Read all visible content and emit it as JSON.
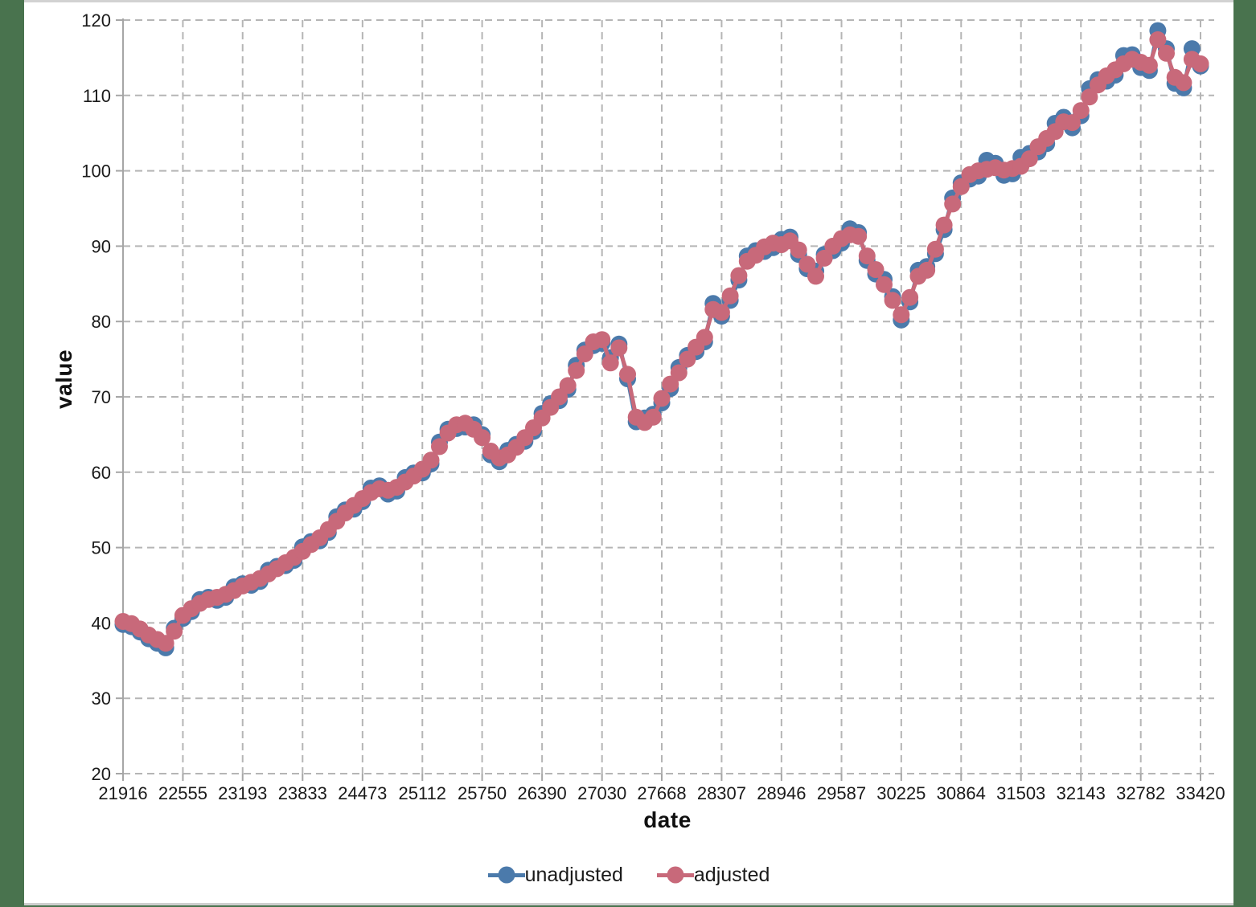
{
  "colors": {
    "page_background": "#49734E",
    "panel_background": "#FFFFFF",
    "gridline": "#B5B5B5",
    "axis_line": "#A6A6A6",
    "tick_text": "#1A1A1A",
    "unadjusted": "#4B7AAB",
    "adjusted": "#C8697A"
  },
  "chart_data": {
    "type": "line",
    "title": "",
    "xlabel": "date",
    "ylabel": "value",
    "grid": true,
    "legend_position": "bottom",
    "xlim": [
      21916,
      33420
    ],
    "ylim": [
      20,
      120
    ],
    "y_ticks": [
      20,
      30,
      40,
      50,
      60,
      70,
      80,
      90,
      100,
      110,
      120
    ],
    "x_ticks": [
      21916,
      22555,
      23193,
      23833,
      24473,
      25112,
      25750,
      26390,
      27030,
      27668,
      28307,
      28946,
      29587,
      30225,
      30864,
      31503,
      32143,
      32782,
      33420
    ],
    "x_tick_labels": [
      "21916",
      "22555",
      "23193",
      "23833",
      "24473",
      "25112",
      "25750",
      "26390",
      "27030",
      "27668",
      "28307",
      "28946",
      "29587",
      "30225",
      "30864",
      "31503",
      "32143",
      "32782",
      "33420"
    ],
    "x": [
      21916,
      22007,
      22098,
      22190,
      22282,
      22372,
      22463,
      22555,
      22647,
      22737,
      22828,
      22920,
      23012,
      23102,
      23193,
      23285,
      23377,
      23468,
      23559,
      23651,
      23743,
      23833,
      23924,
      24016,
      24108,
      24198,
      24289,
      24381,
      24473,
      24563,
      24654,
      24746,
      24838,
      24929,
      25020,
      25112,
      25204,
      25294,
      25385,
      25477,
      25569,
      25659,
      25750,
      25842,
      25934,
      26024,
      26115,
      26207,
      26299,
      26390,
      26481,
      26573,
      26665,
      26755,
      26846,
      26938,
      27030,
      27120,
      27211,
      27303,
      27395,
      27485,
      27576,
      27668,
      27760,
      27851,
      27942,
      28034,
      28126,
      28216,
      28307,
      28399,
      28491,
      28581,
      28672,
      28764,
      28856,
      28946,
      29037,
      29129,
      29221,
      29312,
      29403,
      29495,
      29587,
      29677,
      29768,
      29860,
      29952,
      30042,
      30133,
      30225,
      30317,
      30407,
      30498,
      30590,
      30682,
      30773,
      30864,
      30956,
      31048,
      31138,
      31229,
      31321,
      31413,
      31503,
      31594,
      31686,
      31778,
      31868,
      31959,
      32051,
      32143,
      32234,
      32325,
      32417,
      32509,
      32599,
      32690,
      32782,
      32874,
      32964,
      33055,
      33147,
      33239,
      33329,
      33420
    ],
    "series": [
      {
        "name": "unadjusted",
        "color": "#4B7AAB",
        "values": [
          39.8,
          39.5,
          38.8,
          37.9,
          37.3,
          36.7,
          39.3,
          40.6,
          41.5,
          43.1,
          43.4,
          43.0,
          43.4,
          44.8,
          45.2,
          45.0,
          45.5,
          47.0,
          47.5,
          47.6,
          48.3,
          50.1,
          50.8,
          50.9,
          52.0,
          54.1,
          55.0,
          55.1,
          56.1,
          57.9,
          58.2,
          57.1,
          57.5,
          59.3,
          59.9,
          59.9,
          61.1,
          64.0,
          65.7,
          65.8,
          66.0,
          66.3,
          65.0,
          62.3,
          61.4,
          62.9,
          63.7,
          64.1,
          65.4,
          67.8,
          69.1,
          69.5,
          71.0,
          74.2,
          76.2,
          76.8,
          77.1,
          75.2,
          77.0,
          72.4,
          66.7,
          67.2,
          67.7,
          69.2,
          71.1,
          73.9,
          75.5,
          76.0,
          77.3,
          82.4,
          80.7,
          82.8,
          85.5,
          88.7,
          89.4,
          89.3,
          89.8,
          90.9,
          91.2,
          88.9,
          87.0,
          86.7,
          88.9,
          89.4,
          90.4,
          92.3,
          91.8,
          88.1,
          86.3,
          85.6,
          83.3,
          80.2,
          82.6,
          86.8,
          87.3,
          89.0,
          92.2,
          96.4,
          98.4,
          98.9,
          99.3,
          101.4,
          101.0,
          99.4,
          99.6,
          101.8,
          102.3,
          102.5,
          103.6,
          106.3,
          107.1,
          105.7,
          107.3,
          110.9,
          112.1,
          111.9,
          112.7,
          115.3,
          115.4,
          113.7,
          113.3,
          118.6,
          116.2,
          111.6,
          111.0,
          116.2,
          113.9
        ]
      },
      {
        "name": "adjusted",
        "color": "#C8697A",
        "values": [
          40.2,
          39.9,
          39.2,
          38.4,
          37.8,
          37.3,
          38.9,
          41.0,
          41.9,
          42.6,
          43.1,
          43.4,
          43.8,
          44.3,
          44.9,
          45.4,
          45.9,
          46.5,
          47.2,
          48.0,
          48.7,
          49.5,
          50.4,
          51.3,
          52.4,
          53.5,
          54.6,
          55.6,
          56.5,
          57.3,
          57.8,
          57.6,
          58.0,
          58.7,
          59.5,
          60.4,
          61.6,
          63.4,
          65.2,
          66.3,
          66.5,
          65.7,
          64.6,
          62.8,
          61.9,
          62.3,
          63.3,
          64.6,
          65.9,
          67.2,
          68.6,
          70.0,
          71.5,
          73.5,
          75.7,
          77.3,
          77.6,
          74.5,
          76.5,
          73.0,
          67.3,
          66.6,
          67.3,
          69.8,
          71.7,
          73.2,
          75.0,
          76.6,
          77.9,
          81.6,
          81.2,
          83.4,
          86.1,
          88.0,
          88.8,
          89.9,
          90.4,
          90.2,
          90.7,
          89.5,
          87.6,
          86.0,
          88.4,
          90.0,
          91.0,
          91.5,
          91.3,
          88.7,
          86.9,
          84.9,
          82.8,
          80.9,
          83.2,
          86.0,
          86.8,
          89.6,
          92.8,
          95.6,
          97.9,
          99.5,
          100.0,
          100.2,
          100.4,
          100.1,
          100.3,
          100.6,
          101.6,
          103.2,
          104.3,
          105.2,
          106.5,
          106.4,
          108.0,
          109.8,
          111.4,
          112.6,
          113.4,
          114.2,
          114.8,
          114.4,
          114.0,
          117.4,
          115.6,
          112.4,
          111.7,
          114.8,
          114.2
        ]
      }
    ]
  }
}
